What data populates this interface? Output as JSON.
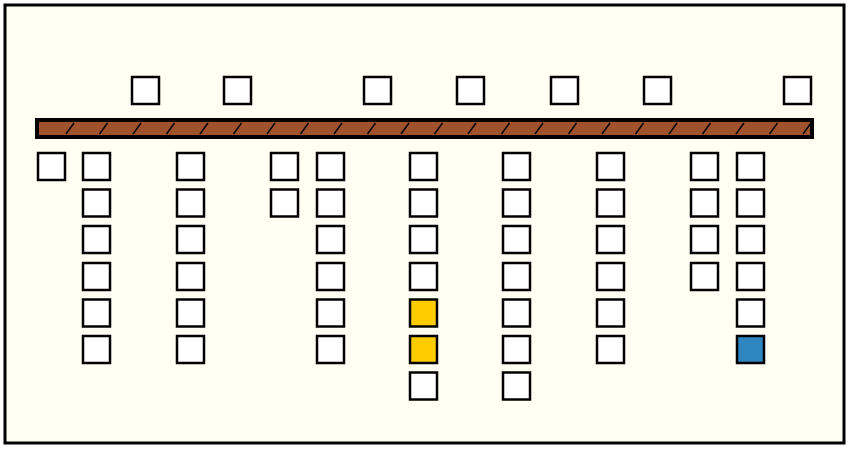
{
  "board": {
    "background": "#fffff4",
    "beam_color": "#a0522d",
    "top_row": [
      "#ffffff",
      "#ffffff",
      "#ffffff",
      "#ffffff",
      "#ffffff",
      "#ffffff",
      "#ffffff"
    ],
    "columns": [
      [
        "#ffffff"
      ],
      [
        "#ffffff",
        "#ffffff",
        "#ffffff",
        "#ffffff",
        "#ffffff",
        "#ffffff"
      ],
      [
        "#ffffff",
        "#ffffff",
        "#ffffff",
        "#ffffff",
        "#ffffff",
        "#ffffff"
      ],
      [
        "#ffffff",
        "#ffffff"
      ],
      [
        "#ffffff",
        "#ffffff",
        "#ffffff",
        "#ffffff",
        "#ffffff",
        "#ffffff"
      ],
      [
        "#ffffff",
        "#ffffff",
        "#ffffff",
        "#ffffff",
        "#ffcc00",
        "#ffcc00",
        "#ffffff"
      ],
      [
        "#ffffff",
        "#ffffff",
        "#ffffff",
        "#ffffff",
        "#ffffff",
        "#ffffff",
        "#ffffff"
      ],
      [
        "#ffffff",
        "#ffffff",
        "#ffffff",
        "#ffffff",
        "#ffffff",
        "#ffffff"
      ],
      [
        "#ffffff",
        "#ffffff",
        "#ffffff",
        "#ffffff"
      ],
      [
        "#ffffff",
        "#ffffff",
        "#ffffff",
        "#ffffff",
        "#ffffff",
        "#2e86c1"
      ]
    ]
  }
}
